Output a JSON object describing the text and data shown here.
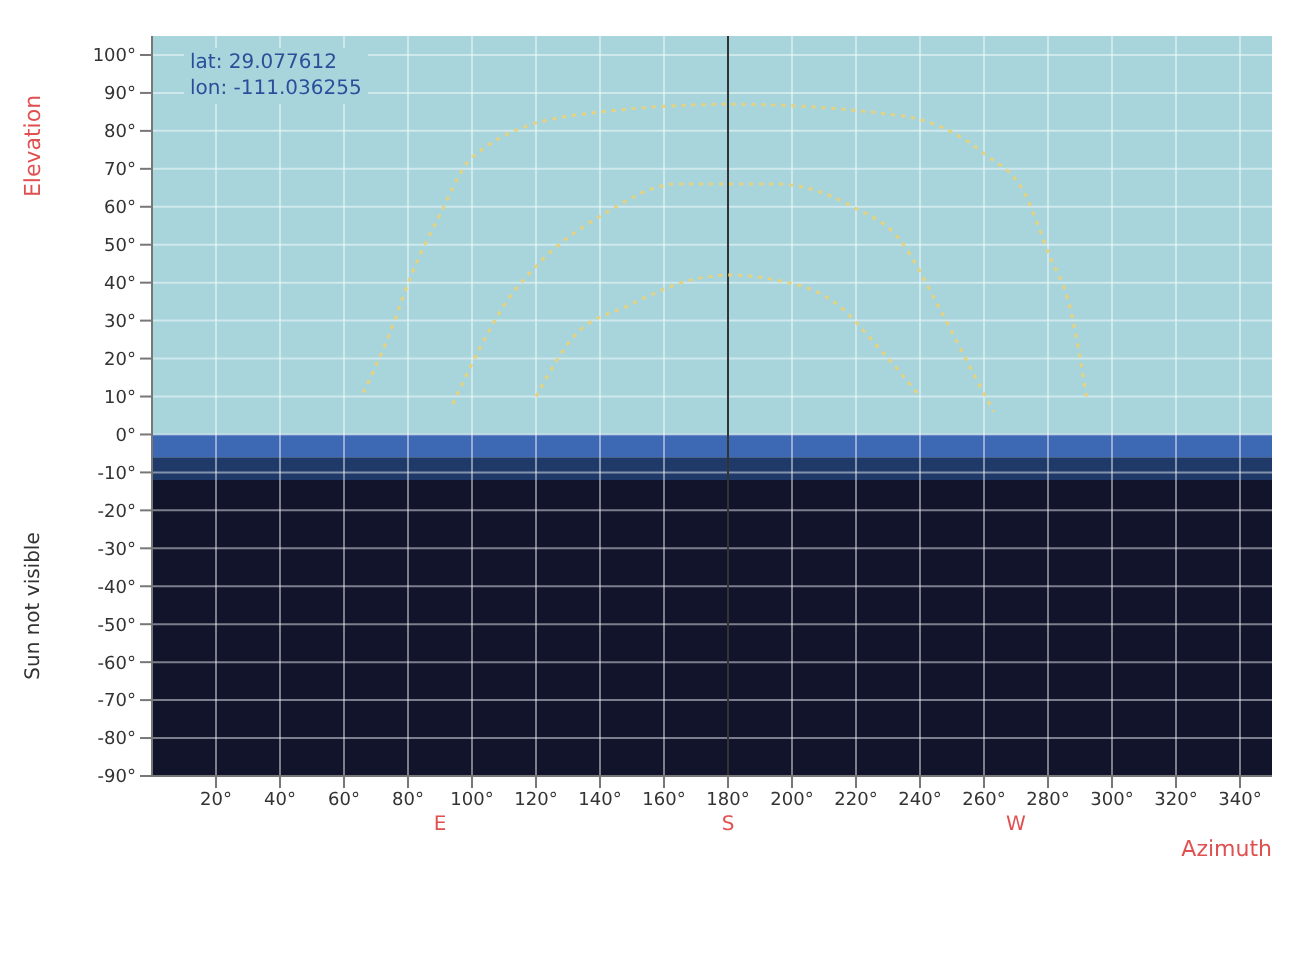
{
  "chart_data": {
    "type": "line",
    "xlabel": "Azimuth",
    "ylabel": "Elevation",
    "y2label": "Sun not visible",
    "annotations": [
      "lat: 29.077612",
      "lon: -111.036255",
      {
        "text": "E",
        "x": 90,
        "y": -90
      },
      {
        "text": "S",
        "x": 180,
        "y": -90
      },
      {
        "text": "W",
        "x": 270,
        "y": -90
      }
    ],
    "xlim": [
      0,
      350
    ],
    "ylim": [
      -90,
      105
    ],
    "xticks": [
      {
        "value": 20,
        "label": "20°"
      },
      {
        "value": 40,
        "label": "40°"
      },
      {
        "value": 60,
        "label": "60°"
      },
      {
        "value": 80,
        "label": "80°"
      },
      {
        "value": 100,
        "label": "100°"
      },
      {
        "value": 120,
        "label": "120°"
      },
      {
        "value": 140,
        "label": "140°"
      },
      {
        "value": 160,
        "label": "160°"
      },
      {
        "value": 180,
        "label": "180°"
      },
      {
        "value": 200,
        "label": "200°"
      },
      {
        "value": 220,
        "label": "220°"
      },
      {
        "value": 240,
        "label": "240°"
      },
      {
        "value": 260,
        "label": "260°"
      },
      {
        "value": 280,
        "label": "280°"
      },
      {
        "value": 300,
        "label": "300°"
      },
      {
        "value": 320,
        "label": "320°"
      },
      {
        "value": 340,
        "label": "340°"
      }
    ],
    "yticks": [
      {
        "value": -90,
        "label": "-90°"
      },
      {
        "value": -80,
        "label": "-80°"
      },
      {
        "value": -70,
        "label": "-70°"
      },
      {
        "value": -60,
        "label": "-60°"
      },
      {
        "value": -50,
        "label": "-50°"
      },
      {
        "value": -40,
        "label": "-40°"
      },
      {
        "value": -30,
        "label": "-30°"
      },
      {
        "value": -20,
        "label": "-20°"
      },
      {
        "value": -10,
        "label": "-10°"
      },
      {
        "value": 0,
        "label": "0°"
      },
      {
        "value": 10,
        "label": "10°"
      },
      {
        "value": 20,
        "label": "20°"
      },
      {
        "value": 30,
        "label": "30°"
      },
      {
        "value": 40,
        "label": "40°"
      },
      {
        "value": 50,
        "label": "50°"
      },
      {
        "value": 60,
        "label": "60°"
      },
      {
        "value": 70,
        "label": "70°"
      },
      {
        "value": 80,
        "label": "80°"
      },
      {
        "value": 90,
        "label": "90°"
      },
      {
        "value": 100,
        "label": "100°"
      }
    ],
    "grid": true,
    "line_style": "dotted",
    "marker": "none",
    "bands": [
      {
        "axis": "y",
        "from": 0,
        "to": 105,
        "color": "#a8d5dc"
      },
      {
        "axis": "y",
        "from": -6,
        "to": 0,
        "color": "#3d68b4"
      },
      {
        "axis": "y",
        "from": -12,
        "to": -6,
        "color": "#1f3a68"
      },
      {
        "axis": "y",
        "from": -90,
        "to": -12,
        "color": "#12142c"
      }
    ],
    "ref_lines": [
      {
        "axis": "x",
        "value": 180,
        "color": "#333333"
      }
    ],
    "series": [
      {
        "color": "#e6d27c",
        "x": [
          66,
          74,
          81,
          90,
          100,
          131,
          181,
          234,
          260,
          273,
          280,
          287,
          292
        ],
        "values": [
          11,
          26,
          42,
          58,
          73,
          84,
          87,
          84,
          74,
          63,
          48,
          33,
          10
        ]
      },
      {
        "color": "#e6d27c",
        "x": [
          94,
          102,
          110,
          122,
          141,
          164,
          181,
          195,
          219,
          234,
          245,
          253,
          263
        ],
        "values": [
          8,
          22,
          34,
          46,
          58,
          66,
          66,
          66,
          60,
          51,
          35,
          22,
          6
        ]
      },
      {
        "color": "#e6d27c",
        "x": [
          120,
          132,
          149,
          170,
          181,
          193,
          213,
          228,
          240
        ],
        "values": [
          10,
          26,
          34,
          41,
          42,
          41,
          35,
          22,
          10
        ]
      }
    ]
  }
}
